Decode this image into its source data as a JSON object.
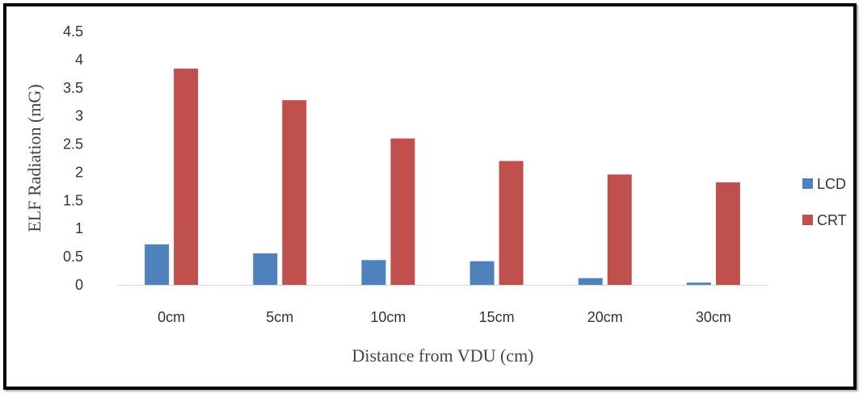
{
  "chart_data": {
    "type": "bar",
    "title": "",
    "xlabel": "Distance from VDU (cm)",
    "ylabel": "ELF Radiation (mG)",
    "categories": [
      "0cm",
      "5cm",
      "10cm",
      "15cm",
      "20cm",
      "30cm"
    ],
    "series": [
      {
        "name": "LCD",
        "color": "#4f81bd",
        "values": [
          0.72,
          0.56,
          0.44,
          0.42,
          0.12,
          0.04
        ]
      },
      {
        "name": "CRT",
        "color": "#c0504d",
        "values": [
          3.84,
          3.28,
          2.6,
          2.2,
          1.96,
          1.82
        ]
      }
    ],
    "yticks": [
      "0",
      "0.5",
      "1",
      "1.5",
      "2",
      "2.5",
      "3",
      "3.5",
      "4",
      "4.5"
    ],
    "ylim": [
      0,
      4.5
    ],
    "grid": false,
    "legend": "right"
  }
}
